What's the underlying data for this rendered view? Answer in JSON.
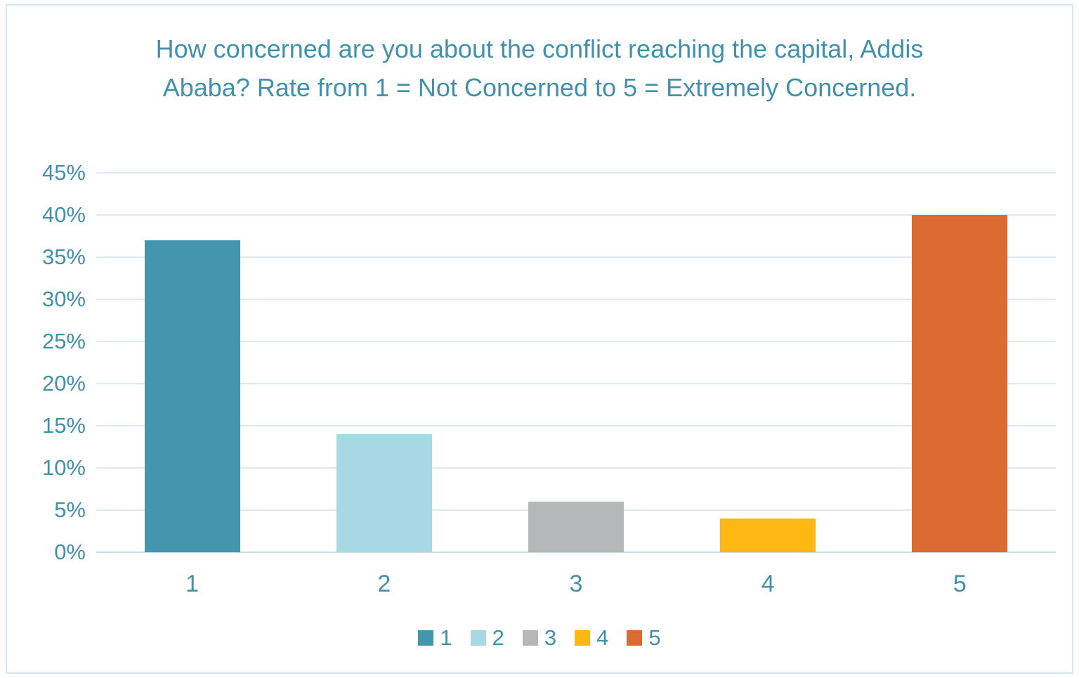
{
  "chart_data": {
    "type": "bar",
    "title": "How concerned are you about the conflict reaching the capital, Addis Ababa? Rate from 1 = Not Concerned to 5 = Extremely Concerned.",
    "categories": [
      "1",
      "2",
      "3",
      "4",
      "5"
    ],
    "values": [
      37,
      14,
      6,
      4,
      40
    ],
    "value_unit": "%",
    "xlabel": "",
    "ylabel": "",
    "ylim": [
      0,
      45
    ],
    "ytick_step": 5,
    "ytick_labels": [
      "0%",
      "5%",
      "10%",
      "15%",
      "20%",
      "25%",
      "30%",
      "35%",
      "40%",
      "45%"
    ],
    "grid": true,
    "legend_position": "bottom",
    "bar_colors": [
      "#4396ae",
      "#a9d8e5",
      "#b4b8b9",
      "#fdb813",
      "#dc6b33"
    ],
    "legend": [
      {
        "label": "1",
        "color": "#4396ae"
      },
      {
        "label": "2",
        "color": "#a9d8e5"
      },
      {
        "label": "3",
        "color": "#b4b8b9"
      },
      {
        "label": "4",
        "color": "#fdb813"
      },
      {
        "label": "5",
        "color": "#dc6b33"
      }
    ]
  },
  "style": {
    "text_color": "#4191ad",
    "gridline_color": "#dce9f0",
    "baseline_color": "#cbdee8",
    "frame_border_color": "#d5e6ee",
    "background_color": "#ffffff"
  }
}
